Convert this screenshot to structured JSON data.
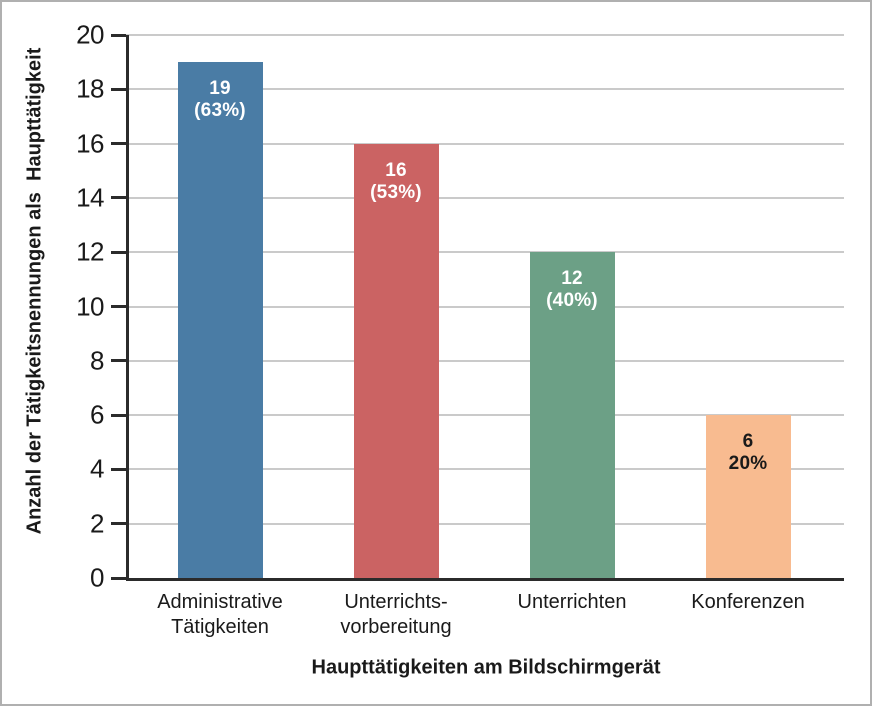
{
  "chart_data": {
    "type": "bar",
    "title": "",
    "xlabel": "Haupttätigkeiten am Bildschirmgerät",
    "ylabel": "Anzahl der Tätigkeitsnennungen als  Haupttätigkeit",
    "ylim": [
      0,
      20
    ],
    "ytick_step": 2,
    "grid": true,
    "legend": "none",
    "categories": [
      [
        "Administrative",
        "Tätigkeiten"
      ],
      [
        "Unterrichts-",
        "vorbereitung"
      ],
      [
        "Unterrichten"
      ],
      [
        "Konferenzen"
      ]
    ],
    "values": [
      19,
      16,
      12,
      6
    ],
    "bar_labels": [
      [
        "19",
        "(63%)"
      ],
      [
        "16",
        "(53%)"
      ],
      [
        "12",
        "(40%)"
      ],
      [
        "6",
        "20%"
      ]
    ],
    "bar_colors": [
      "#4A7CA5",
      "#CB6363",
      "#6CA086",
      "#F8BB90"
    ],
    "bar_label_colors": [
      "#ffffff",
      "#ffffff",
      "#ffffff",
      "#1a1a1a"
    ]
  },
  "colors": {
    "axis": "#2b2b2b",
    "grid": "#cacaca",
    "frame_border": "#b0b0b0",
    "tick_text": "#1a1a1a"
  }
}
